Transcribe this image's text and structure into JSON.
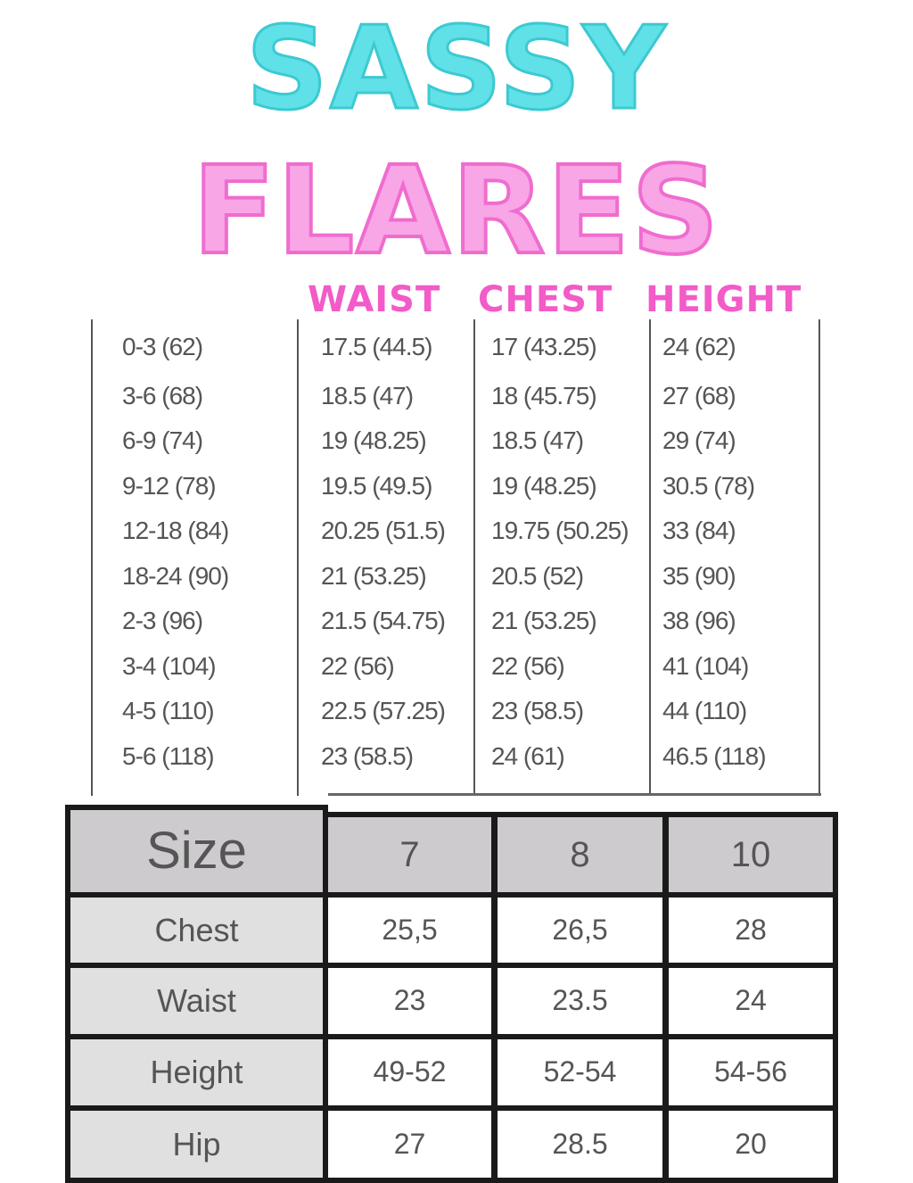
{
  "title": {
    "line1": "SASSY",
    "line2": "FLARES",
    "line1_color": "#5fe1e7",
    "line2_color": "#f8a6e6"
  },
  "top_table": {
    "headers": [
      "WAIST",
      "CHEST",
      "HEIGHT"
    ],
    "header_color": "#f25bc8",
    "rows": [
      [
        "0-3 (62)",
        "17.5 (44.5)",
        "17 (43.25)",
        "24 (62)"
      ],
      [
        "3-6 (68)",
        "18.5 (47)",
        "18 (45.75)",
        "27 (68)"
      ],
      [
        "6-9 (74)",
        "19 (48.25)",
        "18.5 (47)",
        "29 (74)"
      ],
      [
        "9-12 (78)",
        "19.5 (49.5)",
        "19 (48.25)",
        "30.5 (78)"
      ],
      [
        "12-18 (84)",
        "20.25 (51.5)",
        "19.75 (50.25)",
        "33 (84)"
      ],
      [
        "18-24 (90)",
        "21 (53.25)",
        "20.5 (52)",
        "35 (90)"
      ],
      [
        "2-3 (96)",
        "21.5 (54.75)",
        "21 (53.25)",
        "38 (96)"
      ],
      [
        "3-4 (104)",
        "22 (56)",
        "22 (56)",
        "41 (104)"
      ],
      [
        "4-5 (110)",
        "22.5 (57.25)",
        "23 (58.5)",
        "44 (110)"
      ],
      [
        "5-6 (118)",
        "23 (58.5)",
        "24 (61)",
        "46.5 (118)"
      ]
    ]
  },
  "bottom_table": {
    "header": [
      "Size",
      "7",
      "8",
      "10"
    ],
    "rows": [
      [
        "Chest",
        "25,5",
        "26,5",
        "28"
      ],
      [
        "Waist",
        "23",
        "23.5",
        "24"
      ],
      [
        "Height",
        "49-52",
        "52-54",
        "54-56"
      ],
      [
        "Hip",
        "27",
        "28.5",
        "20"
      ]
    ]
  }
}
